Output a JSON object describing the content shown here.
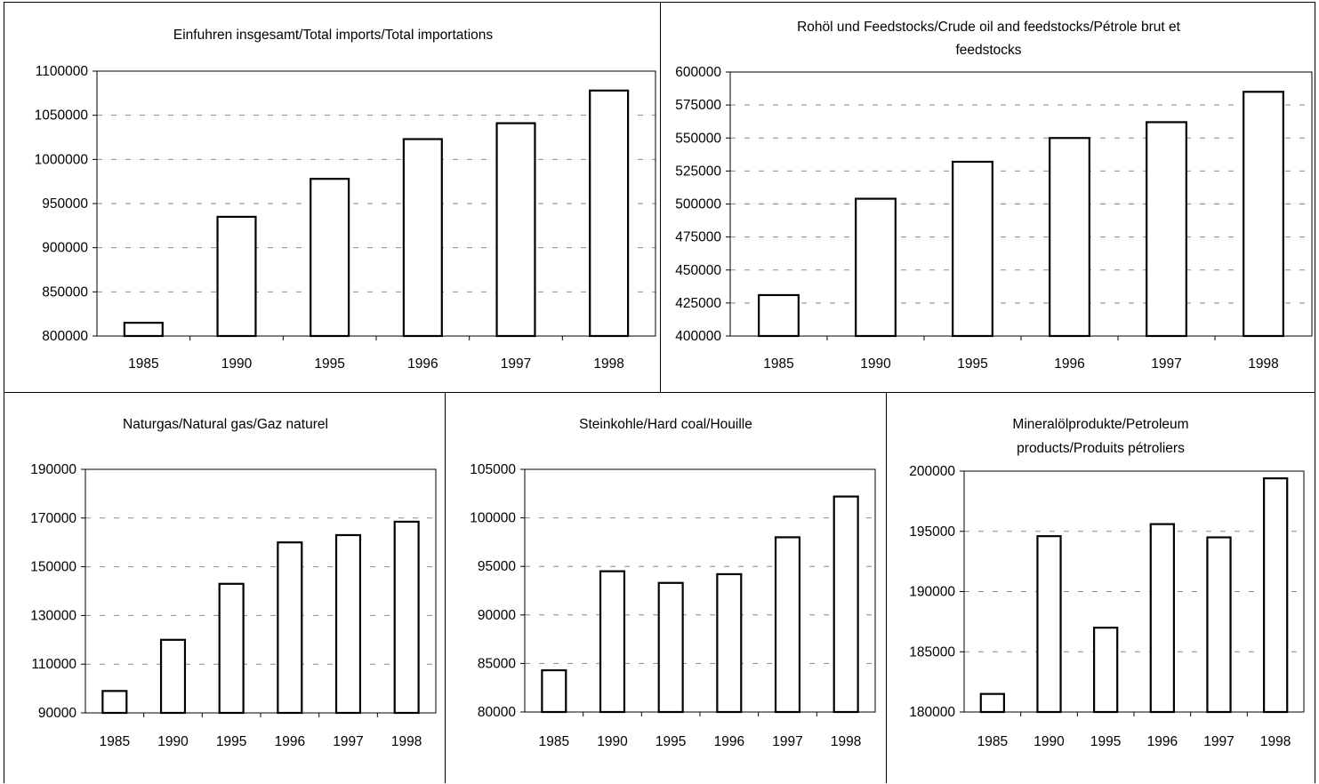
{
  "chart_data": [
    {
      "type": "bar",
      "title_lines": [
        "Einfuhren insgesamt/Total imports/Total importations"
      ],
      "categories": [
        "1985",
        "1990",
        "1995",
        "1996",
        "1997",
        "1998"
      ],
      "values": [
        815000,
        935000,
        978000,
        1023000,
        1041000,
        1078000
      ],
      "ylim": [
        800000,
        1100000
      ],
      "yticks": [
        "800000",
        "850000",
        "900000",
        "950000",
        "1000000",
        "1050000",
        "1100000"
      ],
      "grid": "dashed"
    },
    {
      "type": "bar",
      "title_lines": [
        "Rohöl und Feedstocks/Crude oil and feedstocks/Pétrole brut et",
        "feedstocks"
      ],
      "categories": [
        "1985",
        "1990",
        "1995",
        "1996",
        "1997",
        "1998"
      ],
      "values": [
        431000,
        504000,
        532000,
        550000,
        562000,
        585000
      ],
      "ylim": [
        400000,
        600000
      ],
      "yticks": [
        "400000",
        "425000",
        "450000",
        "475000",
        "500000",
        "525000",
        "550000",
        "575000",
        "600000"
      ],
      "grid": "dashed"
    },
    {
      "type": "bar",
      "title_lines": [
        "Naturgas/Natural gas/Gaz naturel"
      ],
      "categories": [
        "1985",
        "1990",
        "1995",
        "1996",
        "1997",
        "1998"
      ],
      "values": [
        99000,
        120000,
        143000,
        160000,
        163000,
        168500
      ],
      "ylim": [
        90000,
        190000
      ],
      "yticks": [
        "90000",
        "110000",
        "130000",
        "150000",
        "170000",
        "190000"
      ],
      "grid": "dashed"
    },
    {
      "type": "bar",
      "title_lines": [
        "Steinkohle/Hard coal/Houille"
      ],
      "categories": [
        "1985",
        "1990",
        "1995",
        "1996",
        "1997",
        "1998"
      ],
      "values": [
        84300,
        94500,
        93300,
        94200,
        98000,
        102200
      ],
      "ylim": [
        80000,
        105000
      ],
      "yticks": [
        "80000",
        "85000",
        "90000",
        "95000",
        "100000",
        "105000"
      ],
      "grid": "dashed"
    },
    {
      "type": "bar",
      "title_lines": [
        "Mineralölprodukte/Petroleum",
        "products/Produits pétroliers"
      ],
      "categories": [
        "1985",
        "1990",
        "1995",
        "1996",
        "1997",
        "1998"
      ],
      "values": [
        181500,
        194600,
        187000,
        195600,
        194500,
        199400
      ],
      "ylim": [
        180000,
        200000
      ],
      "yticks": [
        "180000",
        "185000",
        "190000",
        "195000",
        "200000"
      ],
      "grid": "dashed"
    }
  ]
}
